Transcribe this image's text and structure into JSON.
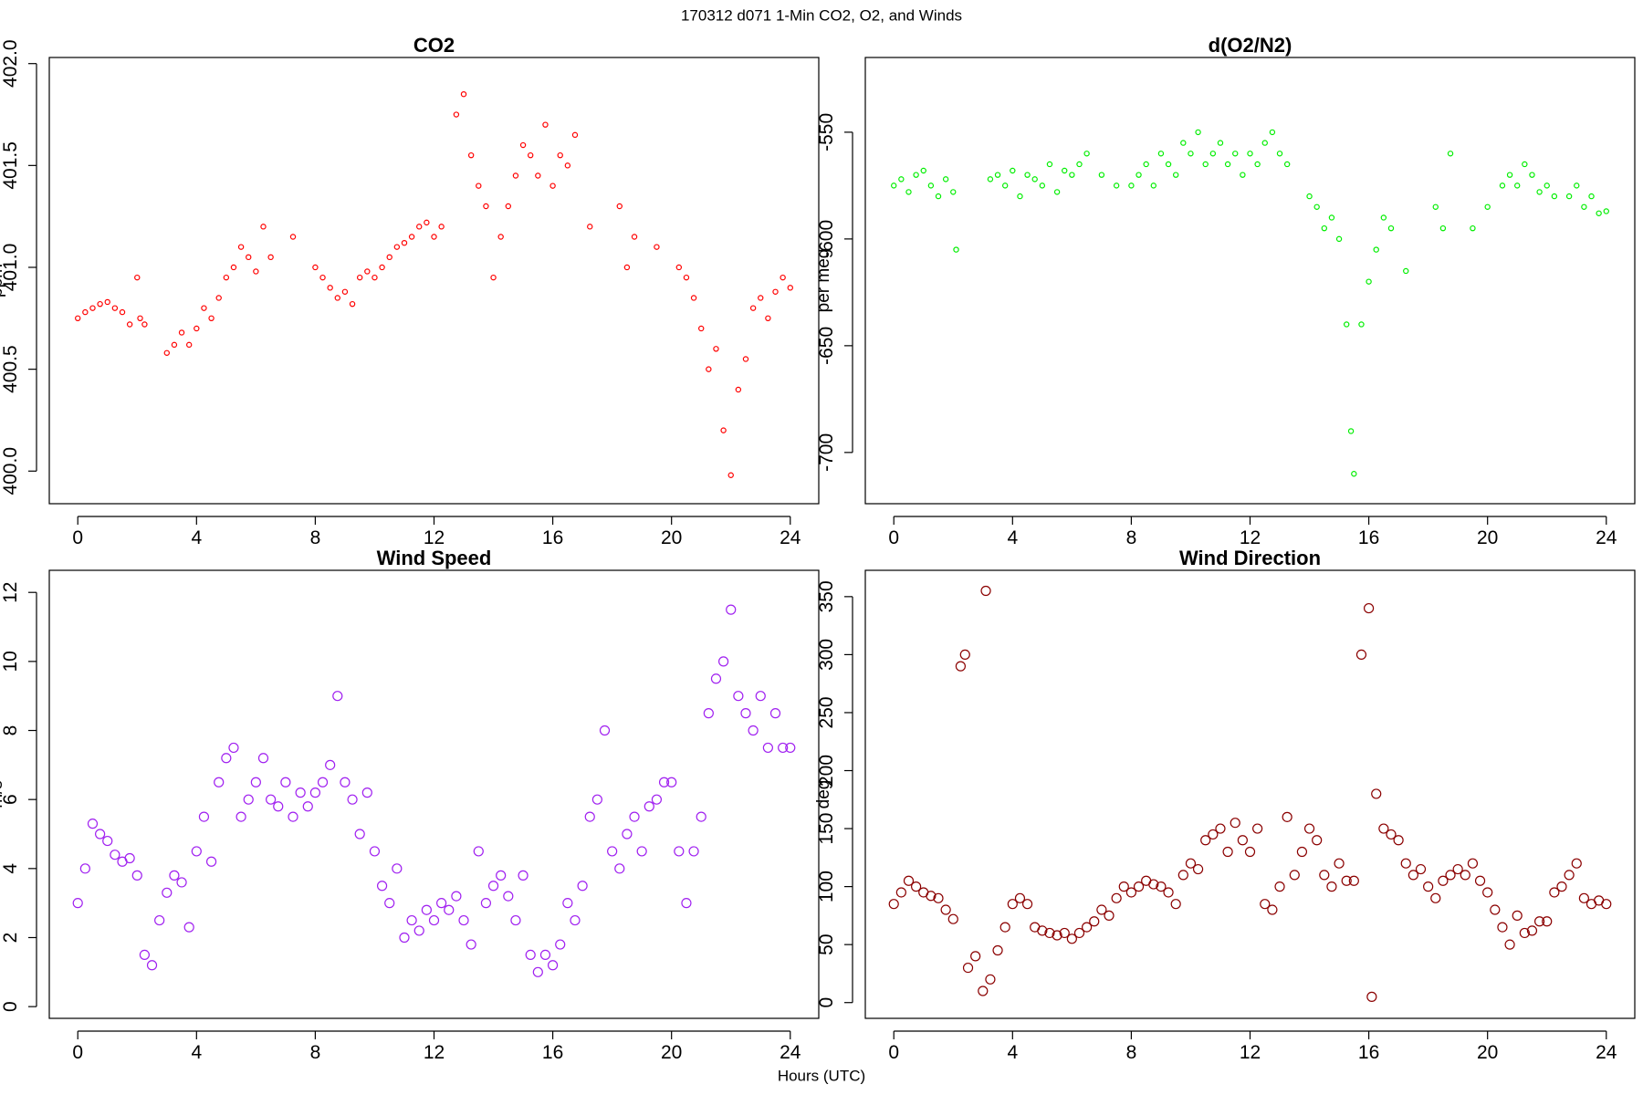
{
  "title": "170312   d071   1-Min CO2, O2, and Winds",
  "x_label": "Hours (UTC)",
  "chart_data": [
    {
      "type": "scatter",
      "title": "CO2",
      "y_label": "ppm",
      "color": "#ff0000",
      "xlim": [
        -0.96,
        24.96
      ],
      "xticks": [
        0,
        4,
        8,
        12,
        16,
        20,
        24
      ],
      "ylim": [
        399.84,
        402.03
      ],
      "yticks": [
        {
          "value": 400,
          "label": "400.0"
        },
        400.5,
        {
          "value": 401,
          "label": "401.0"
        },
        401.5,
        {
          "value": 402,
          "label": "402.0"
        }
      ],
      "x": [
        0,
        0.25,
        0.5,
        0.75,
        1,
        1.25,
        1.5,
        1.75,
        2,
        2.1,
        2.25,
        3,
        3.25,
        3.5,
        3.75,
        4,
        4.25,
        4.5,
        4.75,
        5,
        5.25,
        5.5,
        5.75,
        6,
        6.25,
        6.5,
        7.25,
        8,
        8.25,
        8.5,
        8.75,
        9,
        9.25,
        9.5,
        9.75,
        10,
        10.25,
        10.5,
        10.75,
        11,
        11.25,
        11.5,
        11.75,
        12,
        12.25,
        12.75,
        13,
        13.25,
        13.5,
        13.75,
        14,
        14.25,
        14.5,
        14.75,
        15,
        15.25,
        15.5,
        15.75,
        16,
        16.25,
        16.5,
        16.75,
        17.25,
        18.25,
        18.5,
        18.75,
        19.5,
        20.25,
        20.5,
        20.75,
        21,
        21.25,
        21.5,
        21.75,
        22,
        22.25,
        22.5,
        22.75,
        23,
        23.25,
        23.5,
        23.75,
        24
      ],
      "y": [
        400.75,
        400.78,
        400.8,
        400.82,
        400.83,
        400.8,
        400.78,
        400.72,
        400.95,
        400.75,
        400.72,
        400.58,
        400.62,
        400.68,
        400.62,
        400.7,
        400.8,
        400.75,
        400.85,
        400.95,
        401,
        401.1,
        401.05,
        400.98,
        401.2,
        401.05,
        401.15,
        401,
        400.95,
        400.9,
        400.85,
        400.88,
        400.82,
        400.95,
        400.98,
        400.95,
        401,
        401.05,
        401.1,
        401.12,
        401.15,
        401.2,
        401.22,
        401.15,
        401.2,
        401.75,
        401.85,
        401.55,
        401.4,
        401.3,
        400.95,
        401.15,
        401.3,
        401.45,
        401.6,
        401.55,
        401.45,
        401.7,
        401.4,
        401.55,
        401.5,
        401.65,
        401.2,
        401.3,
        401,
        401.15,
        401.1,
        401,
        400.95,
        400.85,
        400.7,
        400.5,
        400.6,
        400.2,
        399.98,
        400.4,
        400.55,
        400.8,
        400.85,
        400.75,
        400.88,
        400.95,
        400.9
      ]
    },
    {
      "type": "scatter",
      "title": "d(O2/N2)",
      "y_label": "per meg",
      "color": "#00ee00",
      "xlim": [
        -0.96,
        24.96
      ],
      "xticks": [
        0,
        4,
        8,
        12,
        16,
        20,
        24
      ],
      "ylim": [
        -724,
        -515
      ],
      "yticks": [
        -700,
        -650,
        -600,
        -550
      ],
      "x": [
        0,
        0.25,
        0.5,
        0.75,
        1,
        1.25,
        1.5,
        1.75,
        2,
        2.1,
        3.25,
        3.5,
        3.75,
        4,
        4.25,
        4.5,
        4.75,
        5,
        5.25,
        5.5,
        5.75,
        6,
        6.25,
        6.5,
        7,
        7.5,
        8,
        8.25,
        8.5,
        8.75,
        9,
        9.25,
        9.5,
        9.75,
        10,
        10.25,
        10.5,
        10.75,
        11,
        11.25,
        11.5,
        11.75,
        12,
        12.25,
        12.5,
        12.75,
        13,
        13.25,
        14,
        14.25,
        14.5,
        14.75,
        15,
        15.25,
        15.4,
        15.5,
        15.75,
        16,
        16.25,
        16.5,
        16.75,
        17.25,
        18.25,
        18.5,
        18.75,
        19.5,
        20,
        20.5,
        20.75,
        21,
        21.25,
        21.5,
        21.75,
        22,
        22.25,
        22.75,
        23,
        23.25,
        23.5,
        23.75,
        24
      ],
      "y": [
        -575,
        -572,
        -578,
        -570,
        -568,
        -575,
        -580,
        -572,
        -578,
        -605,
        -572,
        -570,
        -575,
        -568,
        -580,
        -570,
        -572,
        -575,
        -565,
        -578,
        -568,
        -570,
        -565,
        -560,
        -570,
        -575,
        -575,
        -570,
        -565,
        -575,
        -560,
        -565,
        -570,
        -555,
        -560,
        -550,
        -565,
        -560,
        -555,
        -565,
        -560,
        -570,
        -560,
        -565,
        -555,
        -550,
        -560,
        -565,
        -580,
        -585,
        -595,
        -590,
        -600,
        -640,
        -690,
        -710,
        -640,
        -620,
        -605,
        -590,
        -595,
        -615,
        -585,
        -595,
        -560,
        -595,
        -585,
        -575,
        -570,
        -575,
        -565,
        -570,
        -578,
        -575,
        -580,
        -580,
        -575,
        -585,
        -580,
        -588,
        -587
      ]
    },
    {
      "type": "scatter",
      "title": "Wind Speed",
      "y_label": "m/s",
      "color": "#a020f0",
      "xlim": [
        -0.96,
        24.96
      ],
      "xticks": [
        0,
        4,
        8,
        12,
        16,
        20,
        24
      ],
      "ylim": [
        -0.34,
        12.64
      ],
      "yticks": [
        0,
        2,
        4,
        6,
        8,
        10,
        12
      ],
      "x": [
        0,
        0.25,
        0.5,
        0.75,
        1,
        1.25,
        1.5,
        1.75,
        2,
        2.25,
        2.5,
        2.75,
        3,
        3.25,
        3.5,
        3.75,
        4,
        4.25,
        4.5,
        4.75,
        5,
        5.25,
        5.5,
        5.75,
        6,
        6.25,
        6.5,
        6.75,
        7,
        7.25,
        7.5,
        7.75,
        8,
        8.25,
        8.5,
        8.75,
        9,
        9.25,
        9.5,
        9.75,
        10,
        10.25,
        10.5,
        10.75,
        11,
        11.25,
        11.5,
        11.75,
        12,
        12.25,
        12.5,
        12.75,
        13,
        13.25,
        13.5,
        13.75,
        14,
        14.25,
        14.5,
        14.75,
        15,
        15.25,
        15.5,
        15.75,
        16,
        16.25,
        16.5,
        16.75,
        17,
        17.25,
        17.5,
        17.75,
        18,
        18.25,
        18.5,
        18.75,
        19,
        19.25,
        19.5,
        19.75,
        20,
        20.25,
        20.5,
        20.75,
        21,
        21.25,
        21.5,
        21.75,
        22,
        22.25,
        22.5,
        22.75,
        23,
        23.25,
        23.5,
        23.75,
        24
      ],
      "y": [
        3,
        4,
        5.3,
        5,
        4.8,
        4.4,
        4.2,
        4.3,
        3.8,
        1.5,
        1.2,
        2.5,
        3.3,
        3.8,
        3.6,
        2.3,
        4.5,
        5.5,
        4.2,
        6.5,
        7.2,
        7.5,
        5.5,
        6,
        6.5,
        7.2,
        6,
        5.8,
        6.5,
        5.5,
        6.2,
        5.8,
        6.2,
        6.5,
        7,
        9,
        6.5,
        6,
        5,
        6.2,
        4.5,
        3.5,
        3,
        4,
        2,
        2.5,
        2.2,
        2.8,
        2.5,
        3,
        2.8,
        3.2,
        2.5,
        1.8,
        4.5,
        3,
        3.5,
        3.8,
        3.2,
        2.5,
        3.8,
        1.5,
        1,
        1.5,
        1.2,
        1.8,
        3,
        2.5,
        3.5,
        5.5,
        6,
        8,
        4.5,
        4,
        5,
        5.5,
        4.5,
        5.8,
        6,
        6.5,
        6.5,
        4.5,
        3,
        4.5,
        5.5,
        8.5,
        9.5,
        10,
        11.5,
        9,
        8.5,
        8,
        9,
        7.5,
        8.5,
        7.5,
        7.5
      ]
    },
    {
      "type": "scatter",
      "title": "Wind Direction",
      "y_label": "deg",
      "color": "#8b0000",
      "xlim": [
        -0.96,
        24.96
      ],
      "xticks": [
        0,
        4,
        8,
        12,
        16,
        20,
        24
      ],
      "ylim": [
        -13.6,
        372.7
      ],
      "yticks": [
        0,
        50,
        100,
        150,
        200,
        250,
        300,
        350
      ],
      "x": [
        0,
        0.25,
        0.5,
        0.75,
        1,
        1.25,
        1.5,
        1.75,
        2,
        2.25,
        2.4,
        2.5,
        2.75,
        3,
        3.1,
        3.25,
        3.5,
        3.75,
        4,
        4.25,
        4.5,
        4.75,
        5,
        5.25,
        5.5,
        5.75,
        6,
        6.25,
        6.5,
        6.75,
        7,
        7.25,
        7.5,
        7.75,
        8,
        8.25,
        8.5,
        8.75,
        9,
        9.25,
        9.5,
        9.75,
        10,
        10.25,
        10.5,
        10.75,
        11,
        11.25,
        11.5,
        11.75,
        12,
        12.25,
        12.5,
        12.75,
        13,
        13.25,
        13.5,
        13.75,
        14,
        14.25,
        14.5,
        14.75,
        15,
        15.25,
        15.5,
        15.75,
        16,
        16.1,
        16.25,
        16.5,
        16.75,
        17,
        17.25,
        17.5,
        17.75,
        18,
        18.25,
        18.5,
        18.75,
        19,
        19.25,
        19.5,
        19.75,
        20,
        20.25,
        20.5,
        20.75,
        21,
        21.25,
        21.5,
        21.75,
        22,
        22.25,
        22.5,
        22.75,
        23,
        23.25,
        23.5,
        23.75,
        24
      ],
      "y": [
        85,
        95,
        105,
        100,
        95,
        92,
        90,
        80,
        72,
        290,
        300,
        30,
        40,
        10,
        355,
        20,
        45,
        65,
        85,
        90,
        85,
        65,
        62,
        60,
        58,
        60,
        55,
        60,
        65,
        70,
        80,
        75,
        90,
        100,
        95,
        100,
        105,
        102,
        100,
        95,
        85,
        110,
        120,
        115,
        140,
        145,
        150,
        130,
        155,
        140,
        130,
        150,
        85,
        80,
        100,
        160,
        110,
        130,
        150,
        140,
        110,
        100,
        120,
        105,
        105,
        300,
        340,
        5,
        180,
        150,
        145,
        140,
        120,
        110,
        115,
        100,
        90,
        105,
        110,
        115,
        110,
        120,
        105,
        95,
        80,
        65,
        50,
        75,
        60,
        62,
        70,
        70,
        95,
        100,
        110,
        120,
        90,
        85,
        88,
        85
      ]
    }
  ]
}
